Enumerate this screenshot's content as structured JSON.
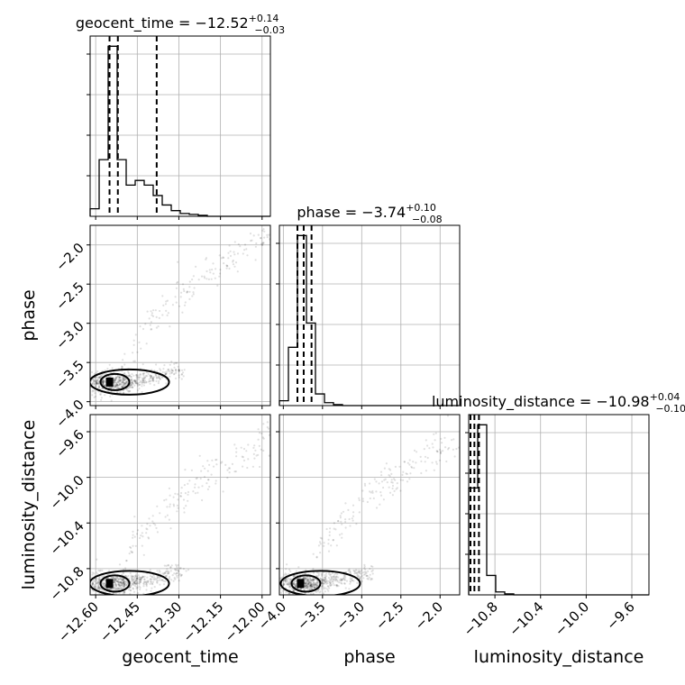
{
  "chart_data": {
    "type": "corner",
    "parameters": [
      "geocent_time",
      "phase",
      "luminosity_distance"
    ],
    "axis_labels": {
      "geocent_time": "geocent_time",
      "phase": "phase",
      "luminosity_distance": "luminosity_distance"
    },
    "titles": {
      "geocent_time": {
        "main": "geocent_time = −12.52",
        "plus": "+0.14",
        "minus": "−0.03"
      },
      "phase": {
        "main": "phase = −3.74",
        "plus": "+0.10",
        "minus": "−0.08"
      },
      "luminosity_distance": {
        "main": "luminosity_distance = −10.98",
        "plus": "+0.04",
        "minus": "−0.10"
      }
    },
    "ranges": {
      "geocent_time": [
        -12.62,
        -11.97
      ],
      "phase": [
        -4.05,
        -1.75
      ],
      "luminosity_distance": [
        -11.03,
        -9.45
      ]
    },
    "ticks": {
      "geocent_time": {
        "values": [
          -12.6,
          -12.45,
          -12.3,
          -12.15,
          -12.0
        ],
        "labels": [
          "−12.60",
          "−12.45",
          "−12.30",
          "−12.15",
          "−12.00"
        ]
      },
      "phase": {
        "values": [
          -4.0,
          -3.5,
          -3.0,
          -2.5,
          -2.0
        ],
        "labels": [
          "−4.0",
          "−3.5",
          "−3.0",
          "−2.5",
          "−2.0"
        ]
      },
      "luminosity_distance": {
        "values": [
          -10.8,
          -10.4,
          -10.0,
          -9.6
        ],
        "labels": [
          "−10.8",
          "−10.4",
          "−10.0",
          "−9.6"
        ]
      }
    },
    "histograms": {
      "geocent_time": {
        "edges": [
          -12.62,
          -12.5875,
          -12.555,
          -12.5225,
          -12.49,
          -12.4575,
          -12.425,
          -12.3925,
          -12.36,
          -12.3275,
          -12.295,
          -12.2625,
          -12.23,
          -12.1975,
          -12.165,
          -12.1325,
          -12.1,
          -12.0675,
          -12.035,
          -12.0025,
          -11.97
        ],
        "counts": [
          8,
          60,
          180,
          60,
          33,
          38,
          33,
          22,
          12,
          6,
          3,
          2,
          1,
          0,
          0,
          0,
          0,
          0,
          0,
          0
        ],
        "quantiles": [
          -12.55,
          -12.52,
          -12.38
        ]
      },
      "phase": {
        "edges": [
          -4.05,
          -3.935,
          -3.82,
          -3.705,
          -3.59,
          -3.475,
          -3.36,
          -3.245,
          -3.13,
          -3.015,
          -2.9,
          -2.785,
          -2.67,
          -2.555,
          -2.44,
          -2.325,
          -2.21,
          -2.095,
          -1.98,
          -1.865,
          -1.75
        ],
        "counts": [
          5,
          60,
          175,
          85,
          12,
          3,
          1,
          0,
          0,
          0,
          0,
          0,
          0,
          0,
          0,
          0,
          0,
          0,
          0,
          0
        ],
        "quantiles": [
          -3.82,
          -3.74,
          -3.64
        ]
      },
      "luminosity_distance": {
        "edges": [
          -11.03,
          -10.951,
          -10.872,
          -10.793,
          -10.714,
          -10.635,
          -10.556,
          -10.477,
          -10.398,
          -10.319,
          -10.24,
          -10.161,
          -10.082,
          -10.003,
          -9.924,
          -9.845,
          -9.766,
          -9.687,
          -9.608,
          -9.529,
          -9.45
        ],
        "counts": [
          110,
          175,
          20,
          3,
          1,
          0,
          0,
          0,
          0,
          0,
          0,
          0,
          0,
          0,
          0,
          0,
          0,
          0,
          0,
          0
        ],
        "quantiles": [
          -11.08,
          -10.98,
          -10.94
        ]
      }
    },
    "modes": {
      "geocent_time_vs_phase": {
        "x": -12.55,
        "y": -3.75
      },
      "geocent_time_vs_luminosity_distance": {
        "x": -12.55,
        "y": -10.93
      },
      "phase_vs_luminosity_distance": {
        "x": -3.78,
        "y": -10.93
      }
    }
  }
}
